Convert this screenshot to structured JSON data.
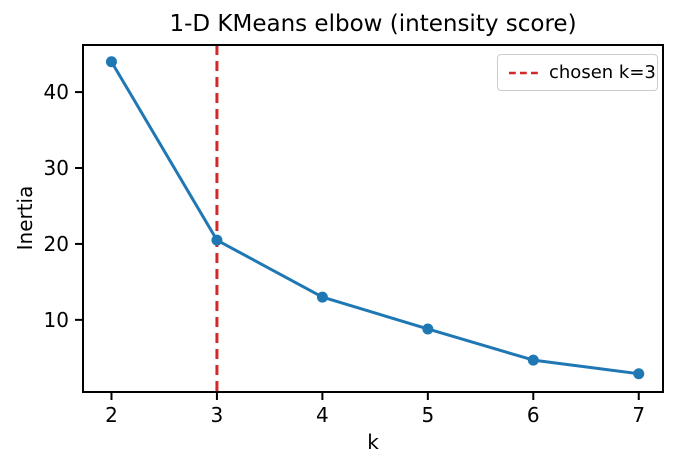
{
  "chart_data": {
    "type": "line",
    "title": "1-D KMeans elbow (intensity score)",
    "xlabel": "k",
    "ylabel": "Inertia",
    "x": [
      2,
      3,
      4,
      5,
      6,
      7
    ],
    "series": [
      {
        "name": "inertia",
        "color": "#1f77b4",
        "marker": "circle",
        "values": [
          44.0,
          20.5,
          13.0,
          8.8,
          4.7,
          2.9
        ]
      }
    ],
    "xticks": [
      "2",
      "3",
      "4",
      "5",
      "6",
      "7"
    ],
    "xtick_values": [
      2,
      3,
      4,
      5,
      6,
      7
    ],
    "yticks": [
      "10",
      "20",
      "30",
      "40"
    ],
    "ytick_values": [
      10,
      20,
      30,
      40
    ],
    "xlim": [
      1.73,
      7.23
    ],
    "ylim": [
      0.5,
      46.2
    ],
    "grid": false,
    "annotations": [
      {
        "type": "vline",
        "x": 3,
        "color": "#d62728",
        "linestyle": "dashed",
        "label": "chosen k=3"
      }
    ],
    "legend": {
      "position": "upper right",
      "entries": [
        {
          "label": "chosen k=3",
          "color": "#d62728",
          "linestyle": "dashed"
        }
      ]
    }
  },
  "colors": {
    "line": "#1f77b4",
    "vline": "#d62728",
    "spine": "#000000",
    "legend_border": "#cccccc",
    "background": "#ffffff"
  }
}
